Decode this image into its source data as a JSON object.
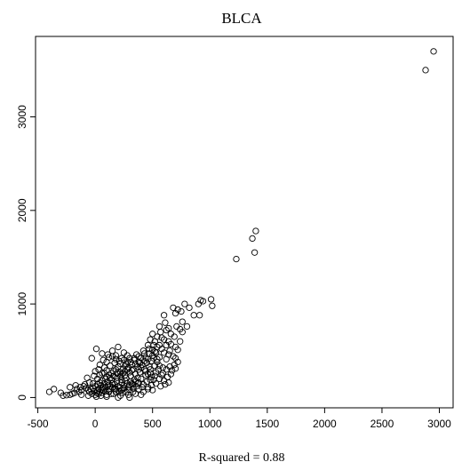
{
  "chart_data": {
    "type": "scatter",
    "title": "BLCA",
    "xlabel": "R-squared = 0.88",
    "ylabel": "",
    "xlim": [
      -520,
      3120
    ],
    "ylim": [
      -110,
      3860
    ],
    "x_ticks": [
      -500,
      0,
      500,
      1000,
      1500,
      2000,
      2500,
      3000
    ],
    "y_ticks": [
      0,
      1000,
      2000,
      3000
    ],
    "grid": false,
    "legend": "none",
    "marker": "open-circle",
    "color": "#000000",
    "points": [
      [
        2950,
        3700
      ],
      [
        2880,
        3500
      ],
      [
        1400,
        1780
      ],
      [
        1370,
        1700
      ],
      [
        1390,
        1550
      ],
      [
        1230,
        1480
      ],
      [
        1010,
        1050
      ],
      [
        1020,
        980
      ],
      [
        920,
        1040
      ],
      [
        940,
        1030
      ],
      [
        900,
        1000
      ],
      [
        910,
        880
      ],
      [
        780,
        1000
      ],
      [
        820,
        960
      ],
      [
        750,
        920
      ],
      [
        700,
        900
      ],
      [
        680,
        960
      ],
      [
        720,
        940
      ],
      [
        600,
        880
      ],
      [
        860,
        880
      ],
      [
        760,
        810
      ],
      [
        610,
        800
      ],
      [
        710,
        760
      ],
      [
        740,
        730
      ],
      [
        640,
        740
      ],
      [
        620,
        720
      ],
      [
        690,
        650
      ],
      [
        740,
        600
      ],
      [
        660,
        570
      ],
      [
        700,
        540
      ],
      [
        720,
        510
      ],
      [
        560,
        760
      ],
      [
        570,
        700
      ],
      [
        540,
        650
      ],
      [
        520,
        600
      ],
      [
        500,
        680
      ],
      [
        480,
        620
      ],
      [
        460,
        560
      ],
      [
        580,
        520
      ],
      [
        600,
        480
      ],
      [
        640,
        460
      ],
      [
        680,
        440
      ],
      [
        700,
        420
      ],
      [
        720,
        380
      ],
      [
        620,
        410
      ],
      [
        560,
        430
      ],
      [
        530,
        480
      ],
      [
        500,
        510
      ],
      [
        470,
        470
      ],
      [
        440,
        430
      ],
      [
        420,
        500
      ],
      [
        400,
        420
      ],
      [
        380,
        380
      ],
      [
        360,
        460
      ],
      [
        340,
        400
      ],
      [
        320,
        350
      ],
      [
        300,
        420
      ],
      [
        280,
        380
      ],
      [
        260,
        340
      ],
      [
        240,
        300
      ],
      [
        220,
        360
      ],
      [
        200,
        330
      ],
      [
        180,
        300
      ],
      [
        160,
        280
      ],
      [
        140,
        260
      ],
      [
        120,
        240
      ],
      [
        100,
        220
      ],
      [
        90,
        200
      ],
      [
        80,
        260
      ],
      [
        60,
        180
      ],
      [
        40,
        160
      ],
      [
        20,
        140
      ],
      [
        0,
        120
      ],
      [
        -20,
        100
      ],
      [
        -40,
        90
      ],
      [
        -60,
        80
      ],
      [
        -80,
        100
      ],
      [
        -100,
        120
      ],
      [
        -120,
        80
      ],
      [
        -140,
        60
      ],
      [
        -160,
        90
      ],
      [
        -180,
        50
      ],
      [
        -200,
        40
      ],
      [
        -220,
        30
      ],
      [
        -250,
        25
      ],
      [
        -280,
        20
      ],
      [
        -300,
        50
      ],
      [
        -360,
        90
      ],
      [
        -400,
        60
      ],
      [
        10,
        520
      ],
      [
        60,
        470
      ],
      [
        120,
        430
      ],
      [
        150,
        500
      ],
      [
        200,
        540
      ],
      [
        250,
        480
      ],
      [
        280,
        450
      ],
      [
        230,
        420
      ],
      [
        180,
        410
      ],
      [
        100,
        380
      ],
      [
        -30,
        420
      ],
      [
        40,
        350
      ],
      [
        80,
        320
      ],
      [
        130,
        340
      ],
      [
        170,
        370
      ],
      [
        210,
        390
      ],
      [
        290,
        320
      ],
      [
        330,
        300
      ],
      [
        370,
        330
      ],
      [
        410,
        350
      ],
      [
        450,
        370
      ],
      [
        490,
        390
      ],
      [
        510,
        420
      ],
      [
        540,
        380
      ],
      [
        470,
        330
      ],
      [
        430,
        300
      ],
      [
        390,
        270
      ],
      [
        350,
        250
      ],
      [
        310,
        230
      ],
      [
        270,
        210
      ],
      [
        230,
        190
      ],
      [
        190,
        170
      ],
      [
        150,
        150
      ],
      [
        110,
        130
      ],
      [
        70,
        110
      ],
      [
        30,
        90
      ],
      [
        -10,
        70
      ],
      [
        -50,
        60
      ],
      [
        400,
        200
      ],
      [
        380,
        160
      ],
      [
        420,
        140
      ],
      [
        460,
        110
      ],
      [
        500,
        80
      ],
      [
        360,
        120
      ],
      [
        330,
        100
      ],
      [
        300,
        80
      ],
      [
        270,
        60
      ],
      [
        240,
        50
      ],
      [
        210,
        70
      ],
      [
        180,
        90
      ],
      [
        150,
        110
      ],
      [
        120,
        90
      ],
      [
        90,
        70
      ],
      [
        60,
        50
      ],
      [
        30,
        40
      ],
      [
        0,
        30
      ],
      [
        -30,
        40
      ],
      [
        250,
        130
      ],
      [
        280,
        150
      ],
      [
        310,
        170
      ],
      [
        340,
        190
      ],
      [
        370,
        210
      ],
      [
        440,
        240
      ],
      [
        480,
        260
      ],
      [
        520,
        230
      ],
      [
        560,
        200
      ],
      [
        600,
        180
      ],
      [
        640,
        160
      ],
      [
        330,
        60
      ],
      [
        350,
        40
      ],
      [
        290,
        30
      ],
      [
        220,
        20
      ],
      [
        160,
        40
      ],
      [
        100,
        30
      ],
      [
        50,
        20
      ],
      [
        10,
        10
      ],
      [
        -60,
        20
      ],
      [
        -120,
        30
      ],
      [
        420,
        60
      ],
      [
        460,
        90
      ],
      [
        490,
        130
      ],
      [
        530,
        150
      ],
      [
        570,
        120
      ],
      [
        610,
        140
      ],
      [
        590,
        260
      ],
      [
        550,
        300
      ],
      [
        520,
        340
      ],
      [
        480,
        300
      ],
      [
        200,
        250
      ],
      [
        220,
        230
      ],
      [
        240,
        260
      ],
      [
        260,
        240
      ],
      [
        300,
        270
      ],
      [
        320,
        290
      ],
      [
        200,
        120
      ],
      [
        170,
        140
      ],
      [
        140,
        190
      ],
      [
        110,
        170
      ],
      [
        80,
        150
      ],
      [
        50,
        130
      ],
      [
        20,
        200
      ],
      [
        -10,
        230
      ],
      [
        60,
        260
      ],
      [
        100,
        290
      ],
      [
        130,
        210
      ],
      [
        160,
        230
      ],
      [
        190,
        210
      ],
      [
        230,
        160
      ],
      [
        260,
        180
      ],
      [
        380,
        300
      ],
      [
        400,
        320
      ],
      [
        440,
        280
      ],
      [
        460,
        250
      ],
      [
        490,
        220
      ],
      [
        510,
        190
      ],
      [
        530,
        270
      ],
      [
        560,
        340
      ],
      [
        590,
        320
      ],
      [
        620,
        300
      ],
      [
        650,
        330
      ],
      [
        670,
        290
      ],
      [
        690,
        350
      ],
      [
        700,
        310
      ],
      [
        660,
        250
      ],
      [
        630,
        220
      ],
      [
        580,
        240
      ],
      [
        540,
        410
      ],
      [
        500,
        450
      ],
      [
        460,
        410
      ],
      [
        430,
        390
      ],
      [
        390,
        370
      ],
      [
        350,
        360
      ],
      [
        310,
        380
      ],
      [
        270,
        360
      ],
      [
        250,
        400
      ],
      [
        180,
        450
      ],
      [
        150,
        440
      ],
      [
        110,
        460
      ],
      [
        70,
        400
      ],
      [
        30,
        300
      ],
      [
        -50,
        160
      ],
      [
        -90,
        140
      ],
      [
        -130,
        110
      ],
      [
        -170,
        130
      ],
      [
        -220,
        110
      ],
      [
        -70,
        210
      ],
      [
        0,
        280
      ],
      [
        40,
        240
      ],
      [
        180,
        60
      ],
      [
        210,
        100
      ],
      [
        240,
        90
      ],
      [
        300,
        130
      ],
      [
        320,
        150
      ],
      [
        350,
        170
      ],
      [
        380,
        90
      ],
      [
        410,
        110
      ],
      [
        450,
        170
      ],
      [
        480,
        190
      ],
      [
        120,
        60
      ],
      [
        90,
        110
      ],
      [
        60,
        90
      ],
      [
        20,
        70
      ],
      [
        -20,
        150
      ],
      [
        140,
        40
      ],
      [
        300,
        0
      ],
      [
        200,
        0
      ],
      [
        100,
        10
      ],
      [
        400,
        30
      ],
      [
        620,
        560
      ],
      [
        650,
        500
      ],
      [
        560,
        560
      ],
      [
        510,
        560
      ],
      [
        470,
        520
      ],
      [
        430,
        470
      ],
      [
        600,
        620
      ],
      [
        640,
        600
      ],
      [
        660,
        680
      ],
      [
        580,
        640
      ],
      [
        800,
        760
      ],
      [
        760,
        700
      ],
      [
        540,
        540
      ],
      [
        520,
        490
      ],
      [
        380,
        440
      ],
      [
        340,
        420
      ],
      [
        280,
        300
      ],
      [
        260,
        280
      ],
      [
        220,
        270
      ],
      [
        190,
        260
      ],
      [
        370,
        150
      ],
      [
        330,
        140
      ],
      [
        290,
        110
      ],
      [
        250,
        100
      ],
      [
        230,
        80
      ],
      [
        170,
        100
      ],
      [
        130,
        120
      ],
      [
        70,
        80
      ],
      [
        40,
        60
      ],
      [
        10,
        50
      ]
    ]
  }
}
